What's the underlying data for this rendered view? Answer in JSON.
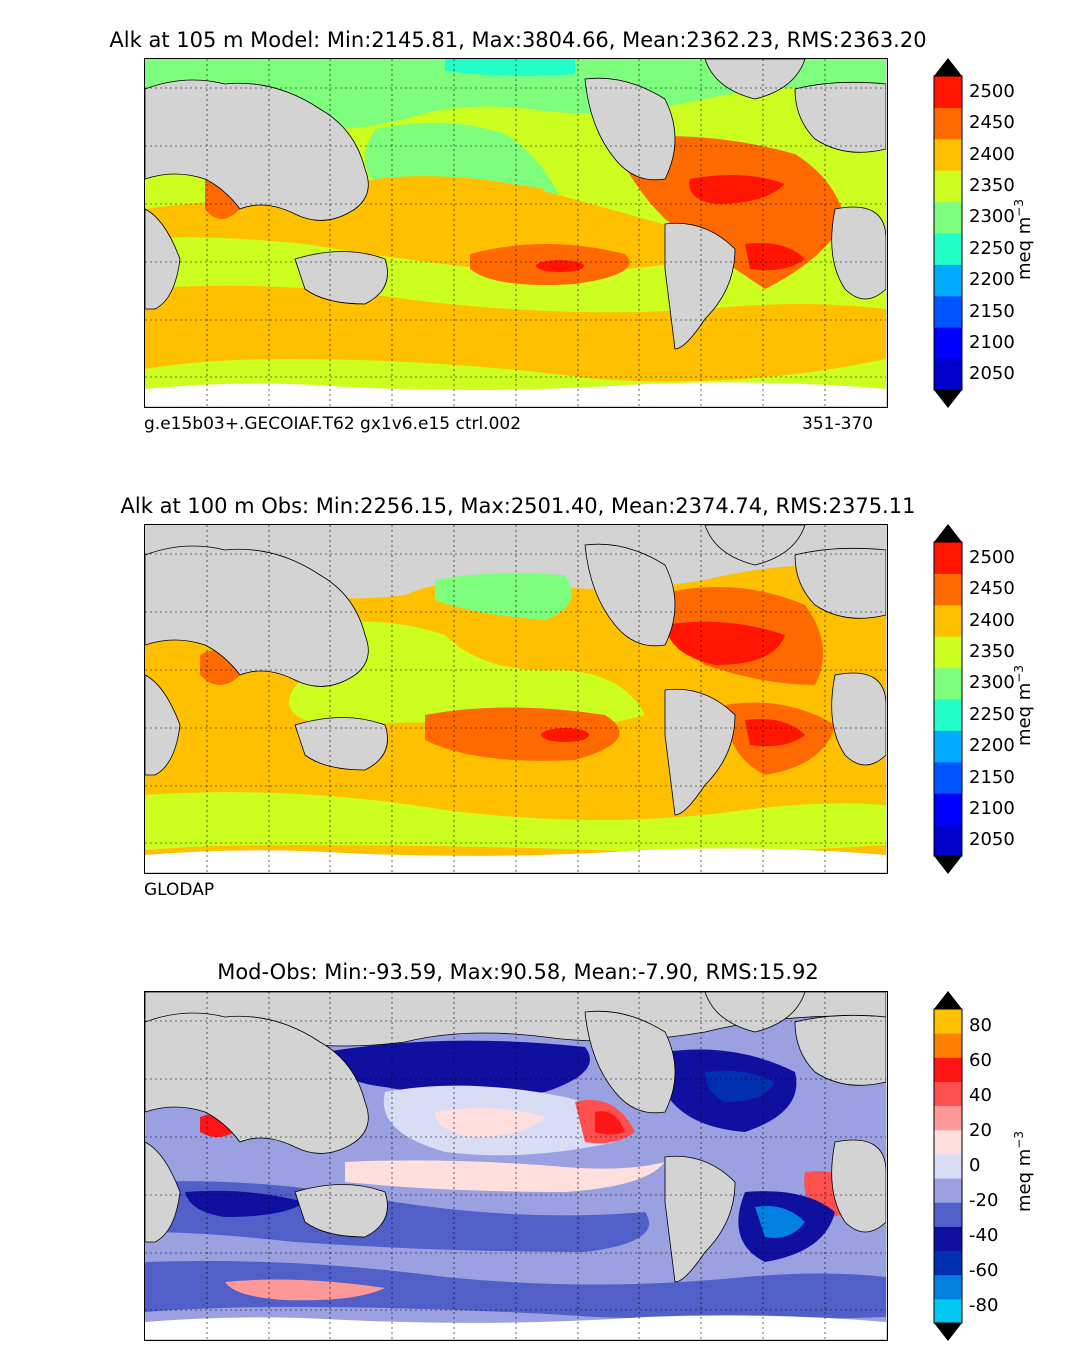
{
  "chart_data": [
    {
      "type": "heatmap",
      "title": "Alk at 105 m Model: Min:2145.81, Max:3804.66, Mean:2362.23, RMS:2363.20",
      "subtitle_left": "g.e15b03+.GECOIAF.T62 gx1v6.e15 ctrl.002",
      "subtitle_right": "351-370",
      "colorbar": {
        "ticks": [
          "2500",
          "2450",
          "2400",
          "2350",
          "2300",
          "2250",
          "2200",
          "2150",
          "2100",
          "2050"
        ],
        "label": "meq m",
        "label_sup": "−3",
        "range": [
          2025,
          2525
        ]
      }
    },
    {
      "type": "heatmap",
      "title": "Alk at 100 m Obs: Min:2256.15, Max:2501.40, Mean:2374.74, RMS:2375.11",
      "subtitle_left": "GLODAP",
      "subtitle_right": "",
      "colorbar": {
        "ticks": [
          "2500",
          "2450",
          "2400",
          "2350",
          "2300",
          "2250",
          "2200",
          "2150",
          "2100",
          "2050"
        ],
        "label": "meq m",
        "label_sup": "−3",
        "range": [
          2025,
          2525
        ]
      }
    },
    {
      "type": "heatmap",
      "title": "Mod-Obs: Min:-93.59, Max:90.58, Mean:-7.90, RMS:15.92",
      "subtitle_left": "",
      "subtitle_right": "",
      "colorbar": {
        "ticks": [
          "80",
          "60",
          "40",
          "20",
          "0",
          "-20",
          "-40",
          "-60",
          "-80"
        ],
        "label": "meq m",
        "label_sup": "−3",
        "range": [
          -90,
          90
        ]
      }
    }
  ],
  "colors": {
    "land": "#d3d3d3",
    "alk_scale": [
      "#000080",
      "#0000cd",
      "#0000ff",
      "#0055ff",
      "#00aaff",
      "#20ffc8",
      "#7dff7d",
      "#ccff20",
      "#ffc000",
      "#ff6a00",
      "#ff1500",
      "#800000"
    ],
    "diff_scale": [
      "#00ffff",
      "#00c8f0",
      "#0080e0",
      "#0030b0",
      "#1010a0",
      "#5060c8",
      "#9aa0e0",
      "#d8dcf4",
      "#ffdede",
      "#ff9999",
      "#ff5050",
      "#ff1515",
      "#ff8000",
      "#ffc000",
      "#ffff00"
    ]
  }
}
